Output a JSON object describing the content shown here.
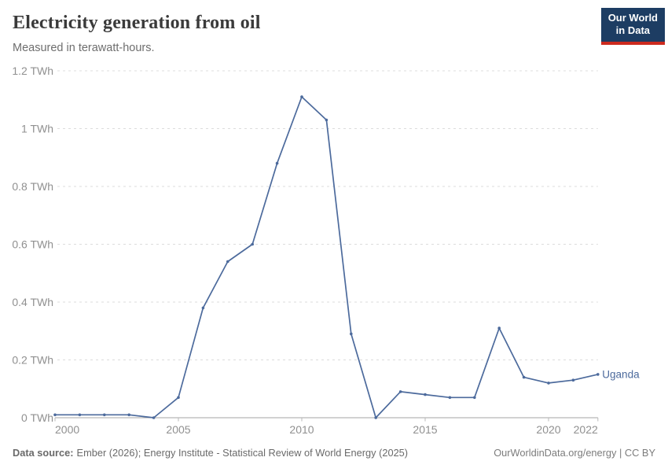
{
  "header": {
    "title": "Electricity generation from oil",
    "subtitle": "Measured in terawatt-hours."
  },
  "logo": {
    "line1": "Our World",
    "line2": "in Data"
  },
  "chart_data": {
    "type": "line",
    "title": "Electricity generation from oil",
    "ylabel": "",
    "xlabel": "",
    "unit": "TWh",
    "grid": true,
    "legend_position": "end-of-line",
    "xlim": [
      2000,
      2022
    ],
    "ylim": [
      0,
      1.2
    ],
    "x": [
      2000,
      2001,
      2002,
      2003,
      2004,
      2005,
      2006,
      2007,
      2008,
      2009,
      2010,
      2011,
      2012,
      2013,
      2014,
      2015,
      2016,
      2017,
      2018,
      2019,
      2020,
      2021,
      2022
    ],
    "series": [
      {
        "name": "Uganda",
        "color": "#4c6a9c",
        "values": [
          0.01,
          0.01,
          0.01,
          0.01,
          0.0,
          0.07,
          0.38,
          0.54,
          0.6,
          0.88,
          1.11,
          1.03,
          0.29,
          0.0,
          0.09,
          0.08,
          0.07,
          0.07,
          0.31,
          0.14,
          0.12,
          0.13,
          0.15
        ]
      }
    ],
    "y_ticks": [
      {
        "value": 0,
        "label": "0 TWh"
      },
      {
        "value": 0.2,
        "label": "0.2 TWh"
      },
      {
        "value": 0.4,
        "label": "0.4 TWh"
      },
      {
        "value": 0.6,
        "label": "0.6 TWh"
      },
      {
        "value": 0.8,
        "label": "0.8 TWh"
      },
      {
        "value": 1,
        "label": "1 TWh"
      },
      {
        "value": 1.2,
        "label": "1.2 TWh"
      }
    ],
    "x_ticks": [
      {
        "value": 2000,
        "label": "2000",
        "anchor": "start"
      },
      {
        "value": 2005,
        "label": "2005",
        "anchor": "middle"
      },
      {
        "value": 2010,
        "label": "2010",
        "anchor": "middle"
      },
      {
        "value": 2015,
        "label": "2015",
        "anchor": "middle"
      },
      {
        "value": 2020,
        "label": "2020",
        "anchor": "middle"
      },
      {
        "value": 2022,
        "label": "2022",
        "anchor": "end"
      }
    ]
  },
  "footer": {
    "source_label": "Data source:",
    "source_text": "Ember (2026); Energy Institute - Statistical Review of World Energy (2025)",
    "credit": "OurWorldinData.org/energy | CC BY"
  },
  "colors": {
    "accent_blue": "#4c6a9c",
    "logo_navy": "#1d3d63",
    "logo_red": "#cc2a1e",
    "grid": "#dcdcdc",
    "axis": "#a5a5a5",
    "tick": "#b8b8b8",
    "tick_text": "#909090"
  }
}
